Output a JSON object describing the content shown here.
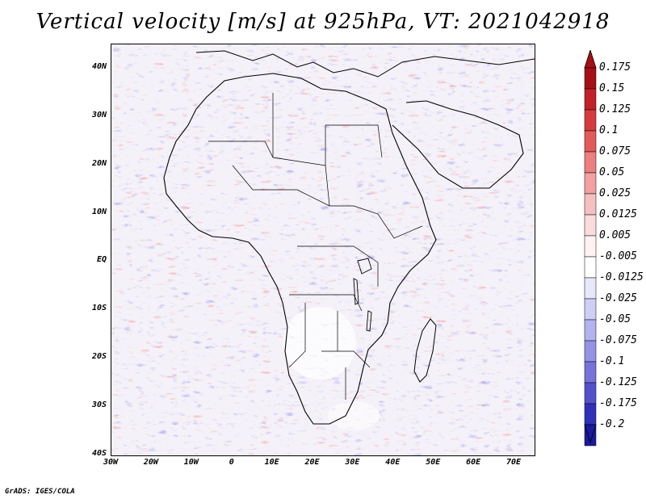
{
  "title": "Vertical velocity [m/s] at 925hPa, VT: 2021042918",
  "footer": "GrADS: IGES/COLA",
  "map": {
    "region": "Africa",
    "projection": "lat-lon",
    "lon_range": [
      -30,
      75
    ],
    "lat_range": [
      -40,
      45
    ],
    "lat_labels": [
      "40N",
      "30N",
      "20N",
      "10N",
      "EQ",
      "10S",
      "20S",
      "30S",
      "40S"
    ],
    "lat_values": [
      40,
      30,
      20,
      10,
      0,
      -10,
      -20,
      -30,
      -40
    ],
    "lon_labels": [
      "30W",
      "20W",
      "10W",
      "0",
      "10E",
      "20E",
      "30E",
      "40E",
      "50E",
      "60E",
      "70E"
    ],
    "lon_values": [
      -30,
      -20,
      -10,
      0,
      10,
      20,
      30,
      40,
      50,
      60,
      70
    ]
  },
  "colorbar": {
    "labels": [
      "0.175",
      "0.15",
      "0.125",
      "0.1",
      "0.075",
      "0.05",
      "0.025",
      "0.0125",
      "0.005",
      "-0.005",
      "-0.0125",
      "-0.025",
      "-0.05",
      "-0.075",
      "-0.1",
      "-0.125",
      "-0.175",
      "-0.2"
    ],
    "colors": [
      "#a50f15",
      "#c2212a",
      "#d73a3f",
      "#e35a5a",
      "#ec7f7f",
      "#f2a0a0",
      "#f7c0c0",
      "#fadcdc",
      "#fff2f2",
      "#ffffff",
      "#e8e8fb",
      "#cfcff6",
      "#b3b3ef",
      "#9494e6",
      "#7474db",
      "#5252cc",
      "#3030b8",
      "#1a1a9e"
    ],
    "top_arrow_color": "#a50f15",
    "bottom_arrow_color": "#1a1a9e"
  },
  "colors": {
    "ocean_background": "#f4f1f8",
    "positive": "#e85a5a",
    "negative": "#6a6ae0"
  }
}
